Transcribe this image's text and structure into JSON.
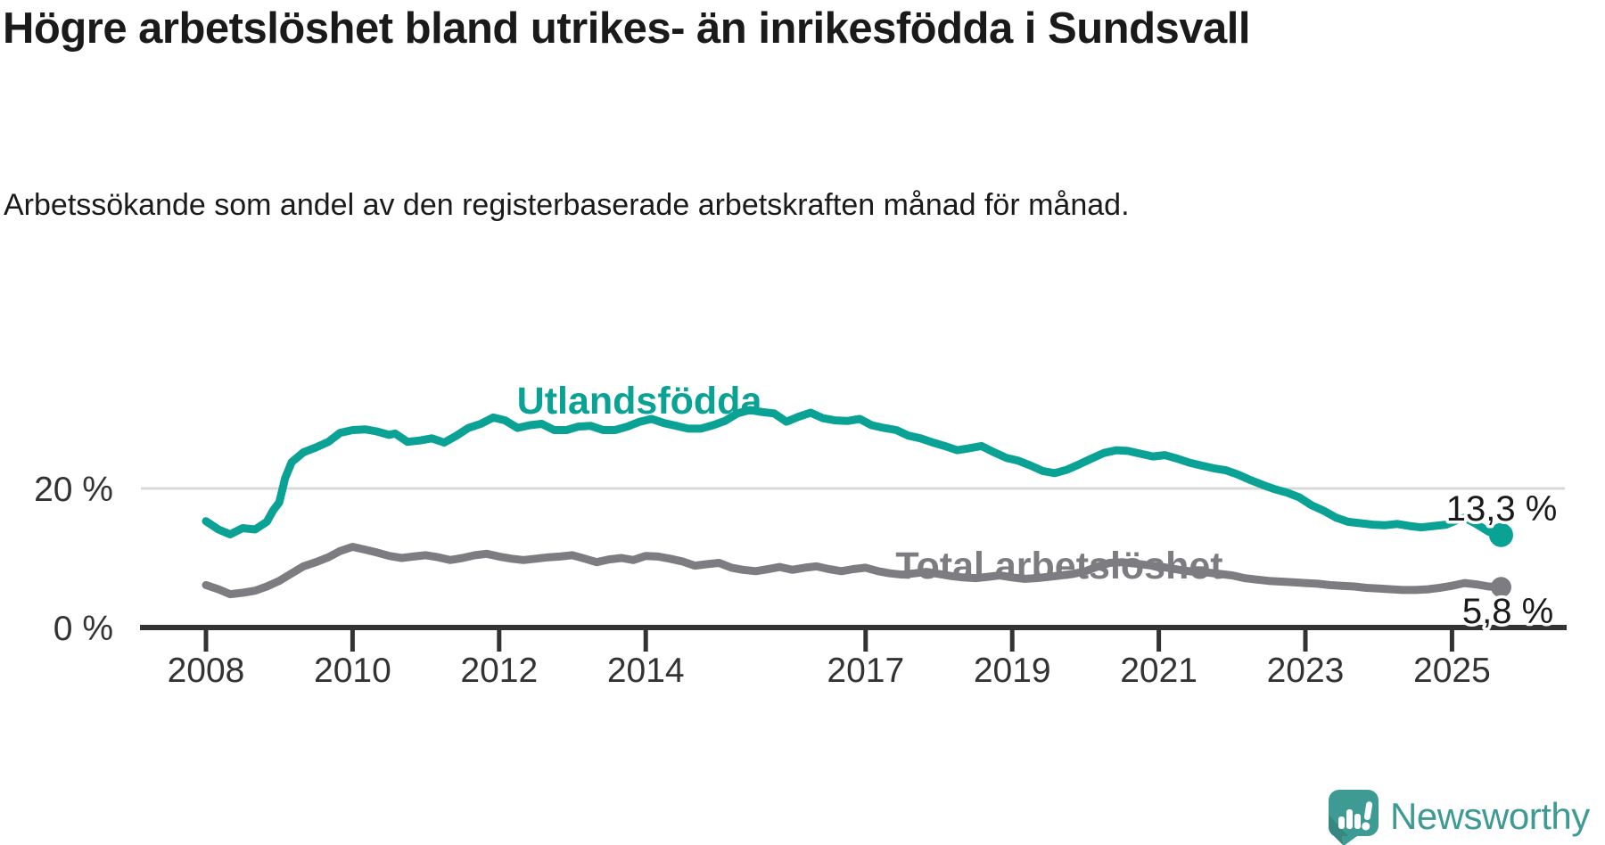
{
  "title": "Högre arbetslöshet bland utrikes- än inrikesfödda i Sundsvall",
  "subtitle": "Arbetssökande som andel av den registerbaserade arbetskraften månad för månad.",
  "colors": {
    "teal_line": "#0aa295",
    "gray_line": "#7c7c81",
    "axis": "#333333",
    "grid": "#d9d9d9",
    "text": "#1a1a1a",
    "logo": "#3e9b93"
  },
  "series_labels": {
    "utlandsfodda": "Utlandsfödda",
    "total": "Total arbetslöshet"
  },
  "annotations": {
    "utlandsfodda_value": "13,3 %",
    "total_value": "5,8 %"
  },
  "y_axis": {
    "ticks": [
      {
        "label": "0 %",
        "value": 0
      },
      {
        "label": "20 %",
        "value": 20
      }
    ]
  },
  "x_axis": {
    "ticks": [
      {
        "label": "2008",
        "year": 2008
      },
      {
        "label": "2010",
        "year": 2010
      },
      {
        "label": "2012",
        "year": 2012
      },
      {
        "label": "2014",
        "year": 2014
      },
      {
        "label": "2017",
        "year": 2017
      },
      {
        "label": "2019",
        "year": 2019
      },
      {
        "label": "2021",
        "year": 2021
      },
      {
        "label": "2023",
        "year": 2023
      },
      {
        "label": "2025",
        "year": 2025
      }
    ]
  },
  "logo": {
    "text": "Newsworthy"
  },
  "chart_data": {
    "type": "line",
    "title": "Högre arbetslöshet bland utrikes- än inrikesfödda i Sundsvall",
    "subtitle": "Arbetssökande som andel av den registerbaserade arbetskraften månad för månad.",
    "x_unit": "decimal_year",
    "y_unit": "percent",
    "xlim": [
      2008,
      2025.9
    ],
    "ylim": [
      0,
      38
    ],
    "grid": "single horizontal gridline at 20 %",
    "legend_position": "inline labels on lines, value labels at line ends",
    "series": [
      {
        "name": "Utlandsfödda",
        "color": "#0aa295",
        "end_label": "13,3 %",
        "points": [
          [
            2008.0,
            15.3
          ],
          [
            2008.17,
            14.1
          ],
          [
            2008.33,
            13.4
          ],
          [
            2008.5,
            14.3
          ],
          [
            2008.67,
            14.1
          ],
          [
            2008.83,
            15.2
          ],
          [
            2008.92,
            16.9
          ],
          [
            2009.0,
            18.0
          ],
          [
            2009.08,
            21.5
          ],
          [
            2009.17,
            23.8
          ],
          [
            2009.33,
            25.2
          ],
          [
            2009.5,
            25.9
          ],
          [
            2009.67,
            26.7
          ],
          [
            2009.83,
            28.0
          ],
          [
            2010.0,
            28.4
          ],
          [
            2010.17,
            28.5
          ],
          [
            2010.33,
            28.2
          ],
          [
            2010.5,
            27.7
          ],
          [
            2010.58,
            27.9
          ],
          [
            2010.75,
            26.7
          ],
          [
            2010.92,
            26.9
          ],
          [
            2011.08,
            27.2
          ],
          [
            2011.25,
            26.6
          ],
          [
            2011.42,
            27.6
          ],
          [
            2011.58,
            28.7
          ],
          [
            2011.75,
            29.3
          ],
          [
            2011.92,
            30.2
          ],
          [
            2012.08,
            29.8
          ],
          [
            2012.25,
            28.7
          ],
          [
            2012.42,
            29.1
          ],
          [
            2012.58,
            29.3
          ],
          [
            2012.75,
            28.4
          ],
          [
            2012.92,
            28.4
          ],
          [
            2013.08,
            28.9
          ],
          [
            2013.25,
            29.0
          ],
          [
            2013.42,
            28.4
          ],
          [
            2013.58,
            28.4
          ],
          [
            2013.75,
            28.9
          ],
          [
            2013.92,
            29.6
          ],
          [
            2014.08,
            30.0
          ],
          [
            2014.25,
            29.4
          ],
          [
            2014.42,
            29.0
          ],
          [
            2014.58,
            28.6
          ],
          [
            2014.75,
            28.6
          ],
          [
            2014.92,
            29.1
          ],
          [
            2015.08,
            29.7
          ],
          [
            2015.25,
            30.8
          ],
          [
            2015.42,
            31.3
          ],
          [
            2015.58,
            31.0
          ],
          [
            2015.75,
            30.8
          ],
          [
            2015.92,
            29.6
          ],
          [
            2016.08,
            30.3
          ],
          [
            2016.25,
            30.9
          ],
          [
            2016.42,
            30.1
          ],
          [
            2016.58,
            29.8
          ],
          [
            2016.75,
            29.7
          ],
          [
            2016.92,
            30.0
          ],
          [
            2017.08,
            29.1
          ],
          [
            2017.25,
            28.7
          ],
          [
            2017.42,
            28.4
          ],
          [
            2017.58,
            27.6
          ],
          [
            2017.75,
            27.2
          ],
          [
            2017.92,
            26.6
          ],
          [
            2018.08,
            26.1
          ],
          [
            2018.25,
            25.5
          ],
          [
            2018.42,
            25.8
          ],
          [
            2018.58,
            26.1
          ],
          [
            2018.75,
            25.2
          ],
          [
            2018.92,
            24.4
          ],
          [
            2019.08,
            24.0
          ],
          [
            2019.25,
            23.3
          ],
          [
            2019.42,
            22.5
          ],
          [
            2019.58,
            22.2
          ],
          [
            2019.75,
            22.7
          ],
          [
            2019.92,
            23.5
          ],
          [
            2020.08,
            24.3
          ],
          [
            2020.25,
            25.1
          ],
          [
            2020.42,
            25.5
          ],
          [
            2020.58,
            25.4
          ],
          [
            2020.75,
            25.0
          ],
          [
            2020.92,
            24.6
          ],
          [
            2021.08,
            24.8
          ],
          [
            2021.25,
            24.3
          ],
          [
            2021.42,
            23.7
          ],
          [
            2021.58,
            23.3
          ],
          [
            2021.75,
            22.9
          ],
          [
            2021.92,
            22.6
          ],
          [
            2022.08,
            22.0
          ],
          [
            2022.25,
            21.2
          ],
          [
            2022.42,
            20.5
          ],
          [
            2022.58,
            19.9
          ],
          [
            2022.75,
            19.4
          ],
          [
            2022.92,
            18.7
          ],
          [
            2023.08,
            17.6
          ],
          [
            2023.25,
            16.8
          ],
          [
            2023.42,
            15.8
          ],
          [
            2023.58,
            15.2
          ],
          [
            2023.75,
            15.0
          ],
          [
            2023.92,
            14.8
          ],
          [
            2024.08,
            14.7
          ],
          [
            2024.25,
            14.9
          ],
          [
            2024.42,
            14.6
          ],
          [
            2024.58,
            14.4
          ],
          [
            2024.75,
            14.6
          ],
          [
            2024.92,
            14.8
          ],
          [
            2025.08,
            15.5
          ],
          [
            2025.17,
            15.8
          ],
          [
            2025.33,
            14.9
          ],
          [
            2025.5,
            13.8
          ],
          [
            2025.67,
            13.3
          ]
        ]
      },
      {
        "name": "Total arbetslöshet",
        "color": "#7c7c81",
        "end_label": "5,8 %",
        "points": [
          [
            2008.0,
            6.1
          ],
          [
            2008.17,
            5.5
          ],
          [
            2008.33,
            4.8
          ],
          [
            2008.5,
            5.0
          ],
          [
            2008.67,
            5.3
          ],
          [
            2008.83,
            5.9
          ],
          [
            2009.0,
            6.7
          ],
          [
            2009.17,
            7.8
          ],
          [
            2009.33,
            8.8
          ],
          [
            2009.5,
            9.4
          ],
          [
            2009.67,
            10.1
          ],
          [
            2009.83,
            11.0
          ],
          [
            2010.0,
            11.6
          ],
          [
            2010.17,
            11.2
          ],
          [
            2010.33,
            10.8
          ],
          [
            2010.5,
            10.3
          ],
          [
            2010.67,
            10.0
          ],
          [
            2010.83,
            10.2
          ],
          [
            2011.0,
            10.4
          ],
          [
            2011.17,
            10.1
          ],
          [
            2011.33,
            9.7
          ],
          [
            2011.5,
            10.0
          ],
          [
            2011.67,
            10.4
          ],
          [
            2011.83,
            10.6
          ],
          [
            2012.0,
            10.2
          ],
          [
            2012.17,
            9.9
          ],
          [
            2012.33,
            9.7
          ],
          [
            2012.5,
            9.9
          ],
          [
            2012.67,
            10.1
          ],
          [
            2012.83,
            10.2
          ],
          [
            2013.0,
            10.4
          ],
          [
            2013.17,
            9.9
          ],
          [
            2013.33,
            9.4
          ],
          [
            2013.5,
            9.8
          ],
          [
            2013.67,
            10.0
          ],
          [
            2013.83,
            9.7
          ],
          [
            2014.0,
            10.3
          ],
          [
            2014.17,
            10.2
          ],
          [
            2014.33,
            9.9
          ],
          [
            2014.5,
            9.5
          ],
          [
            2014.67,
            8.9
          ],
          [
            2014.83,
            9.1
          ],
          [
            2015.0,
            9.3
          ],
          [
            2015.17,
            8.6
          ],
          [
            2015.33,
            8.3
          ],
          [
            2015.5,
            8.1
          ],
          [
            2015.67,
            8.4
          ],
          [
            2015.83,
            8.7
          ],
          [
            2016.0,
            8.3
          ],
          [
            2016.17,
            8.6
          ],
          [
            2016.33,
            8.8
          ],
          [
            2016.5,
            8.4
          ],
          [
            2016.67,
            8.1
          ],
          [
            2016.83,
            8.4
          ],
          [
            2017.0,
            8.6
          ],
          [
            2017.17,
            8.1
          ],
          [
            2017.33,
            7.8
          ],
          [
            2017.5,
            7.6
          ],
          [
            2017.67,
            7.8
          ],
          [
            2017.83,
            8.0
          ],
          [
            2018.0,
            7.7
          ],
          [
            2018.17,
            7.4
          ],
          [
            2018.33,
            7.2
          ],
          [
            2018.5,
            7.1
          ],
          [
            2018.67,
            7.3
          ],
          [
            2018.83,
            7.5
          ],
          [
            2019.0,
            7.2
          ],
          [
            2019.17,
            7.0
          ],
          [
            2019.33,
            7.1
          ],
          [
            2019.5,
            7.3
          ],
          [
            2019.67,
            7.5
          ],
          [
            2019.83,
            7.7
          ],
          [
            2020.0,
            8.1
          ],
          [
            2020.17,
            8.8
          ],
          [
            2020.33,
            9.3
          ],
          [
            2020.5,
            9.4
          ],
          [
            2020.67,
            9.2
          ],
          [
            2020.83,
            9.0
          ],
          [
            2021.0,
            8.8
          ],
          [
            2021.17,
            8.5
          ],
          [
            2021.33,
            8.2
          ],
          [
            2021.5,
            8.0
          ],
          [
            2021.67,
            7.9
          ],
          [
            2021.83,
            7.7
          ],
          [
            2022.0,
            7.5
          ],
          [
            2022.17,
            7.1
          ],
          [
            2022.33,
            6.9
          ],
          [
            2022.5,
            6.7
          ],
          [
            2022.67,
            6.6
          ],
          [
            2022.83,
            6.5
          ],
          [
            2023.0,
            6.4
          ],
          [
            2023.17,
            6.3
          ],
          [
            2023.33,
            6.1
          ],
          [
            2023.5,
            6.0
          ],
          [
            2023.67,
            5.9
          ],
          [
            2023.83,
            5.7
          ],
          [
            2024.0,
            5.6
          ],
          [
            2024.17,
            5.5
          ],
          [
            2024.33,
            5.4
          ],
          [
            2024.5,
            5.4
          ],
          [
            2024.67,
            5.5
          ],
          [
            2024.83,
            5.7
          ],
          [
            2025.0,
            6.0
          ],
          [
            2025.17,
            6.4
          ],
          [
            2025.33,
            6.2
          ],
          [
            2025.5,
            5.9
          ],
          [
            2025.67,
            5.8
          ]
        ]
      }
    ]
  }
}
